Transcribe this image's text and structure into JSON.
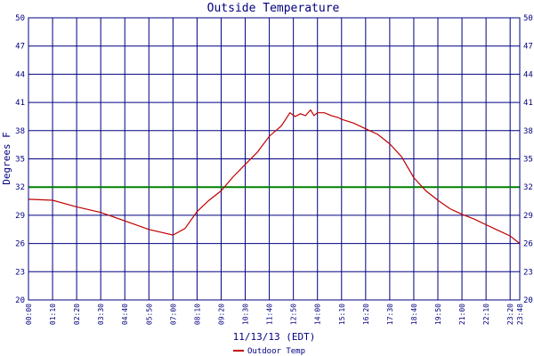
{
  "chart_data": {
    "type": "line",
    "title": "Outside Temperature",
    "xlabel": "11/13/13 (EDT)",
    "ylabel": "Degrees F",
    "ylim": [
      20,
      50
    ],
    "y_ticks": [
      "20",
      "23",
      "26",
      "29",
      "32",
      "35",
      "38",
      "41",
      "44",
      "47",
      "50"
    ],
    "x_ticks": [
      "00:00",
      "01:10",
      "02:20",
      "03:30",
      "04:40",
      "05:50",
      "07:00",
      "08:10",
      "09:20",
      "10:30",
      "11:40",
      "12:50",
      "14:00",
      "15:10",
      "16:20",
      "17:30",
      "18:40",
      "19:50",
      "21:00",
      "22:10",
      "23:20",
      "23:48"
    ],
    "grid": true,
    "reference_line": {
      "value": 32,
      "color": "#008000"
    },
    "legend": {
      "position": "bottom-left"
    },
    "series": [
      {
        "name": "Outdoor Temp",
        "color": "#c00000",
        "x": [
          "00:00",
          "01:10",
          "02:20",
          "03:30",
          "04:40",
          "05:50",
          "07:00",
          "07:35",
          "08:10",
          "08:45",
          "09:20",
          "09:55",
          "10:30",
          "11:05",
          "11:40",
          "12:15",
          "12:40",
          "12:55",
          "13:10",
          "13:25",
          "13:40",
          "13:50",
          "14:00",
          "14:20",
          "14:40",
          "15:00",
          "15:10",
          "15:45",
          "16:20",
          "16:55",
          "17:30",
          "18:05",
          "18:40",
          "19:15",
          "19:50",
          "20:25",
          "21:00",
          "21:35",
          "22:10",
          "22:45",
          "23:20",
          "23:48"
        ],
        "values": [
          30.7,
          30.6,
          29.9,
          29.3,
          28.4,
          27.5,
          26.9,
          27.6,
          29.4,
          30.6,
          31.6,
          33.1,
          34.4,
          35.7,
          37.4,
          38.5,
          39.9,
          39.5,
          39.8,
          39.6,
          40.2,
          39.6,
          39.9,
          39.9,
          39.6,
          39.4,
          39.2,
          38.8,
          38.2,
          37.6,
          36.6,
          35.2,
          33.0,
          31.6,
          30.6,
          29.7,
          29.1,
          28.6,
          28.0,
          27.4,
          26.8,
          26.0
        ]
      }
    ]
  }
}
